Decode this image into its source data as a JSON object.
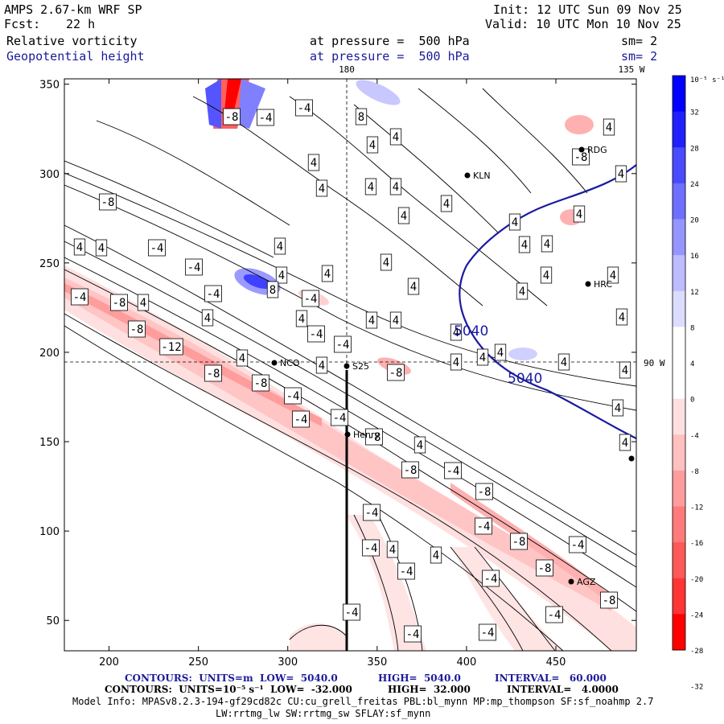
{
  "header": {
    "model": "AMPS 2.67-km WRF SP",
    "forecast_label": "Fcst:",
    "forecast_value": "22 h",
    "init": "Init: 12 UTC Sun 09 Nov 25",
    "valid": "Valid: 10 UTC Mon 10 Nov 25",
    "field1_name": "Relative vorticity",
    "field1_level": "at pressure =  500 hPa",
    "field1_smooth": "sm= 2",
    "field2_name": "Geopotential height",
    "field2_level": "at pressure =  500 hPa",
    "field2_smooth": "sm= 2"
  },
  "map": {
    "lon_top_labels": [
      "180",
      "135 W"
    ],
    "lon_right_label": "90 W",
    "x_ticks": [
      "200",
      "250",
      "300",
      "350",
      "400",
      "450"
    ],
    "y_ticks": [
      "50",
      "100",
      "150",
      "200",
      "250",
      "300",
      "350"
    ],
    "stations": [
      "NCO",
      "KLN",
      "RDG",
      "HRC",
      "AGZ",
      "Henry",
      "S25"
    ],
    "height_labels": [
      "5040",
      "5040"
    ],
    "vort_labels_pos": [
      "4",
      "4",
      "4",
      "4",
      "4",
      "4",
      "4",
      "4",
      "4",
      "4",
      "4",
      "4",
      "4",
      "4",
      "4",
      "4",
      "4",
      "4",
      "4",
      "4",
      "4",
      "4",
      "4",
      "4",
      "4",
      "4",
      "4",
      "4",
      "4",
      "4",
      "4",
      "4",
      "4",
      "4",
      "4",
      "4",
      "4",
      "4",
      "4",
      "4"
    ],
    "vort_labels_neg": [
      "-4",
      "-4",
      "-4",
      "-4",
      "-4",
      "-4",
      "-4",
      "-4",
      "-4",
      "-4",
      "-4",
      "-4",
      "-4",
      "-4",
      "-4",
      "-4",
      "-4",
      "-4"
    ],
    "vort_labels_neg8": [
      "-8",
      "-8",
      "-8",
      "-8",
      "-8",
      "-8",
      "-8",
      "-8",
      "-8",
      "-8",
      "-8",
      "-8"
    ],
    "vort_labels_neg12": [
      "-12"
    ],
    "vort_labels_pos8": [
      "8",
      "8"
    ]
  },
  "colorbar": {
    "unit": "10⁻⁵ s⁻¹",
    "ticks": [
      "32",
      "28",
      "24",
      "20",
      "16",
      "12",
      "8",
      "4",
      "0",
      "-4",
      "-8",
      "-12",
      "-16",
      "-20",
      "-24",
      "-28",
      "-32"
    ],
    "colors": [
      "#0000ff",
      "#2020ff",
      "#4a4aff",
      "#6f6fff",
      "#9595ff",
      "#bcbcff",
      "#dcdcff",
      "#ffffff",
      "#ffffff",
      "#ffe0e0",
      "#ffc0c0",
      "#ff9c9c",
      "#ff7a7a",
      "#ff5858",
      "#ff3535",
      "#ff0000"
    ]
  },
  "footer": {
    "contours1_label": "CONTOURS:  UNITS=m  LOW=  5040.0",
    "contours1_high": "HIGH=  5040.0",
    "contours1_interval": "INTERVAL=   60.000",
    "contours2_label": "CONTOURS:  UNITS=10⁻⁵ s⁻¹  LOW=  -32.000",
    "contours2_high": "HIGH=  32.000",
    "contours2_interval": "INTERVAL=   4.0000",
    "model_info": "Model Info: MPASv8.2.3-194-gf29cd82c CU:cu_grell_freitas PBL:bl_mynn MP:mp_thompson SF:sf_noahmp 2.7",
    "model_info2": "LW:rrtmg_lw SW:rrtmg_sw SFLAY:sf_mynn"
  }
}
